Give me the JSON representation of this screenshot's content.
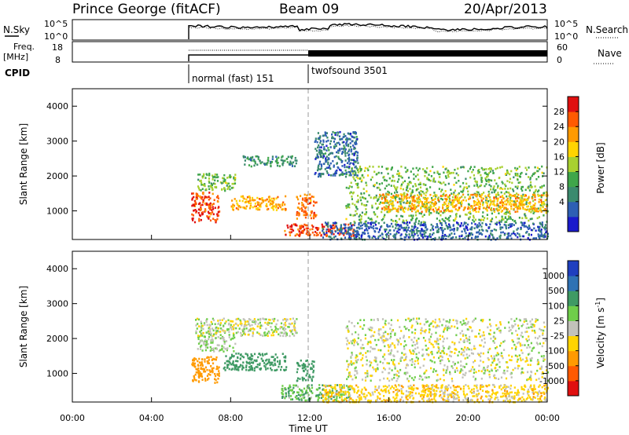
{
  "header": {
    "station": "Prince George (fitACF)",
    "beam": "Beam 09",
    "date": "20/Apr/2013"
  },
  "strips": {
    "nsky_label": "N.Sky",
    "nsky_ticks": [
      "10^5",
      "10^0"
    ],
    "nsearch_label": "N.Search",
    "nsearch_ticks": [
      "10^5",
      "10^0"
    ],
    "freq_label": "Freq.",
    "freq_unit": "[MHz]",
    "freq_ticks": [
      "18",
      "8"
    ],
    "nave_label": "Nave",
    "nave_ticks": [
      "60",
      "0"
    ],
    "cpid_label": "CPID",
    "cpid_segments": [
      {
        "label": "normal (fast) 151",
        "start_hour": 6.0
      },
      {
        "label": "twofsound 3501",
        "start_hour": 12.0
      }
    ]
  },
  "axes": {
    "ylabel": "Slant Range [km]",
    "yticks": [
      "4000",
      "3000",
      "2000",
      "1000"
    ],
    "xticks": [
      "00:00",
      "04:00",
      "08:00",
      "12:00",
      "16:00",
      "20:00",
      "00:00"
    ],
    "xlabel": "Time UT"
  },
  "power_scale": {
    "label": "Power [dB]",
    "ticks": [
      "28",
      "24",
      "20",
      "16",
      "12",
      "8",
      "4"
    ],
    "colors": [
      "#1a1acc",
      "#2e5fb4",
      "#3b8a6e",
      "#3fa64a",
      "#a8d030",
      "#ffd400",
      "#ff9a00",
      "#ff5a00",
      "#e01010"
    ]
  },
  "velocity_scale": {
    "label": "Velocity [m s^-1]",
    "ticks": [
      "1000",
      "500",
      "100",
      "25",
      "-25",
      "-100",
      "-500",
      "-1000"
    ],
    "colors": [
      "#1f3fbf",
      "#2f72b4",
      "#3f9a64",
      "#6fce4a",
      "#c2c2ba",
      "#ffd400",
      "#ff9a00",
      "#ff5a00",
      "#e01010"
    ]
  },
  "chart_data": [
    {
      "type": "heatmap",
      "name": "power",
      "x_range_hours": [
        0,
        24
      ],
      "y_range_km": [
        180,
        4500
      ],
      "colorbar_range_db": [
        0,
        32
      ],
      "event_marker_hour": 12.0,
      "data_start_hour": 6.0,
      "regions": [
        {
          "t0": 6.0,
          "t1": 7.4,
          "r0": 700,
          "r1": 1550,
          "v": 28
        },
        {
          "t0": 6.3,
          "t1": 8.2,
          "r0": 1600,
          "r1": 2100,
          "v": 14
        },
        {
          "t0": 8.0,
          "t1": 10.8,
          "r0": 1050,
          "r1": 1450,
          "v": 22
        },
        {
          "t0": 8.6,
          "t1": 11.3,
          "r0": 2300,
          "r1": 2600,
          "v": 10
        },
        {
          "t0": 11.3,
          "t1": 12.3,
          "r0": 800,
          "r1": 1500,
          "v": 25
        },
        {
          "t0": 10.7,
          "t1": 14.2,
          "r0": 300,
          "r1": 650,
          "v": 28
        },
        {
          "t0": 13.8,
          "t1": 24.0,
          "r0": 700,
          "r1": 2300,
          "v": 14
        },
        {
          "t0": 15.5,
          "t1": 24.0,
          "r0": 1000,
          "r1": 1500,
          "v": 22
        },
        {
          "t0": 12.6,
          "t1": 24.0,
          "r0": 200,
          "r1": 700,
          "v": 6
        },
        {
          "t0": 12.2,
          "t1": 14.4,
          "r0": 2000,
          "r1": 3300,
          "v": 7
        }
      ]
    },
    {
      "type": "heatmap",
      "name": "velocity",
      "x_range_hours": [
        0,
        24
      ],
      "y_range_km": [
        180,
        4500
      ],
      "colorbar_range_ms": [
        -1000,
        1000
      ],
      "event_marker_hour": 12.0,
      "data_start_hour": 6.0,
      "regions": [
        {
          "t0": 6.0,
          "t1": 7.4,
          "r0": 750,
          "r1": 1500,
          "v": -400
        },
        {
          "t0": 6.3,
          "t1": 8.2,
          "r0": 1650,
          "r1": 2100,
          "v": 40
        },
        {
          "t0": 7.6,
          "t1": 10.8,
          "r0": 1100,
          "r1": 1600,
          "v": 300
        },
        {
          "t0": 6.2,
          "t1": 11.3,
          "r0": 2100,
          "r1": 2600,
          "v": 0
        },
        {
          "t0": 11.3,
          "t1": 12.2,
          "r0": 800,
          "r1": 1400,
          "v": 200
        },
        {
          "t0": 10.5,
          "t1": 14.0,
          "r0": 250,
          "r1": 700,
          "v": 80
        },
        {
          "t0": 13.8,
          "t1": 24.0,
          "r0": 800,
          "r1": 2600,
          "v": 0
        },
        {
          "t0": 12.6,
          "t1": 24.0,
          "r0": 200,
          "r1": 700,
          "v": -60
        }
      ]
    }
  ]
}
